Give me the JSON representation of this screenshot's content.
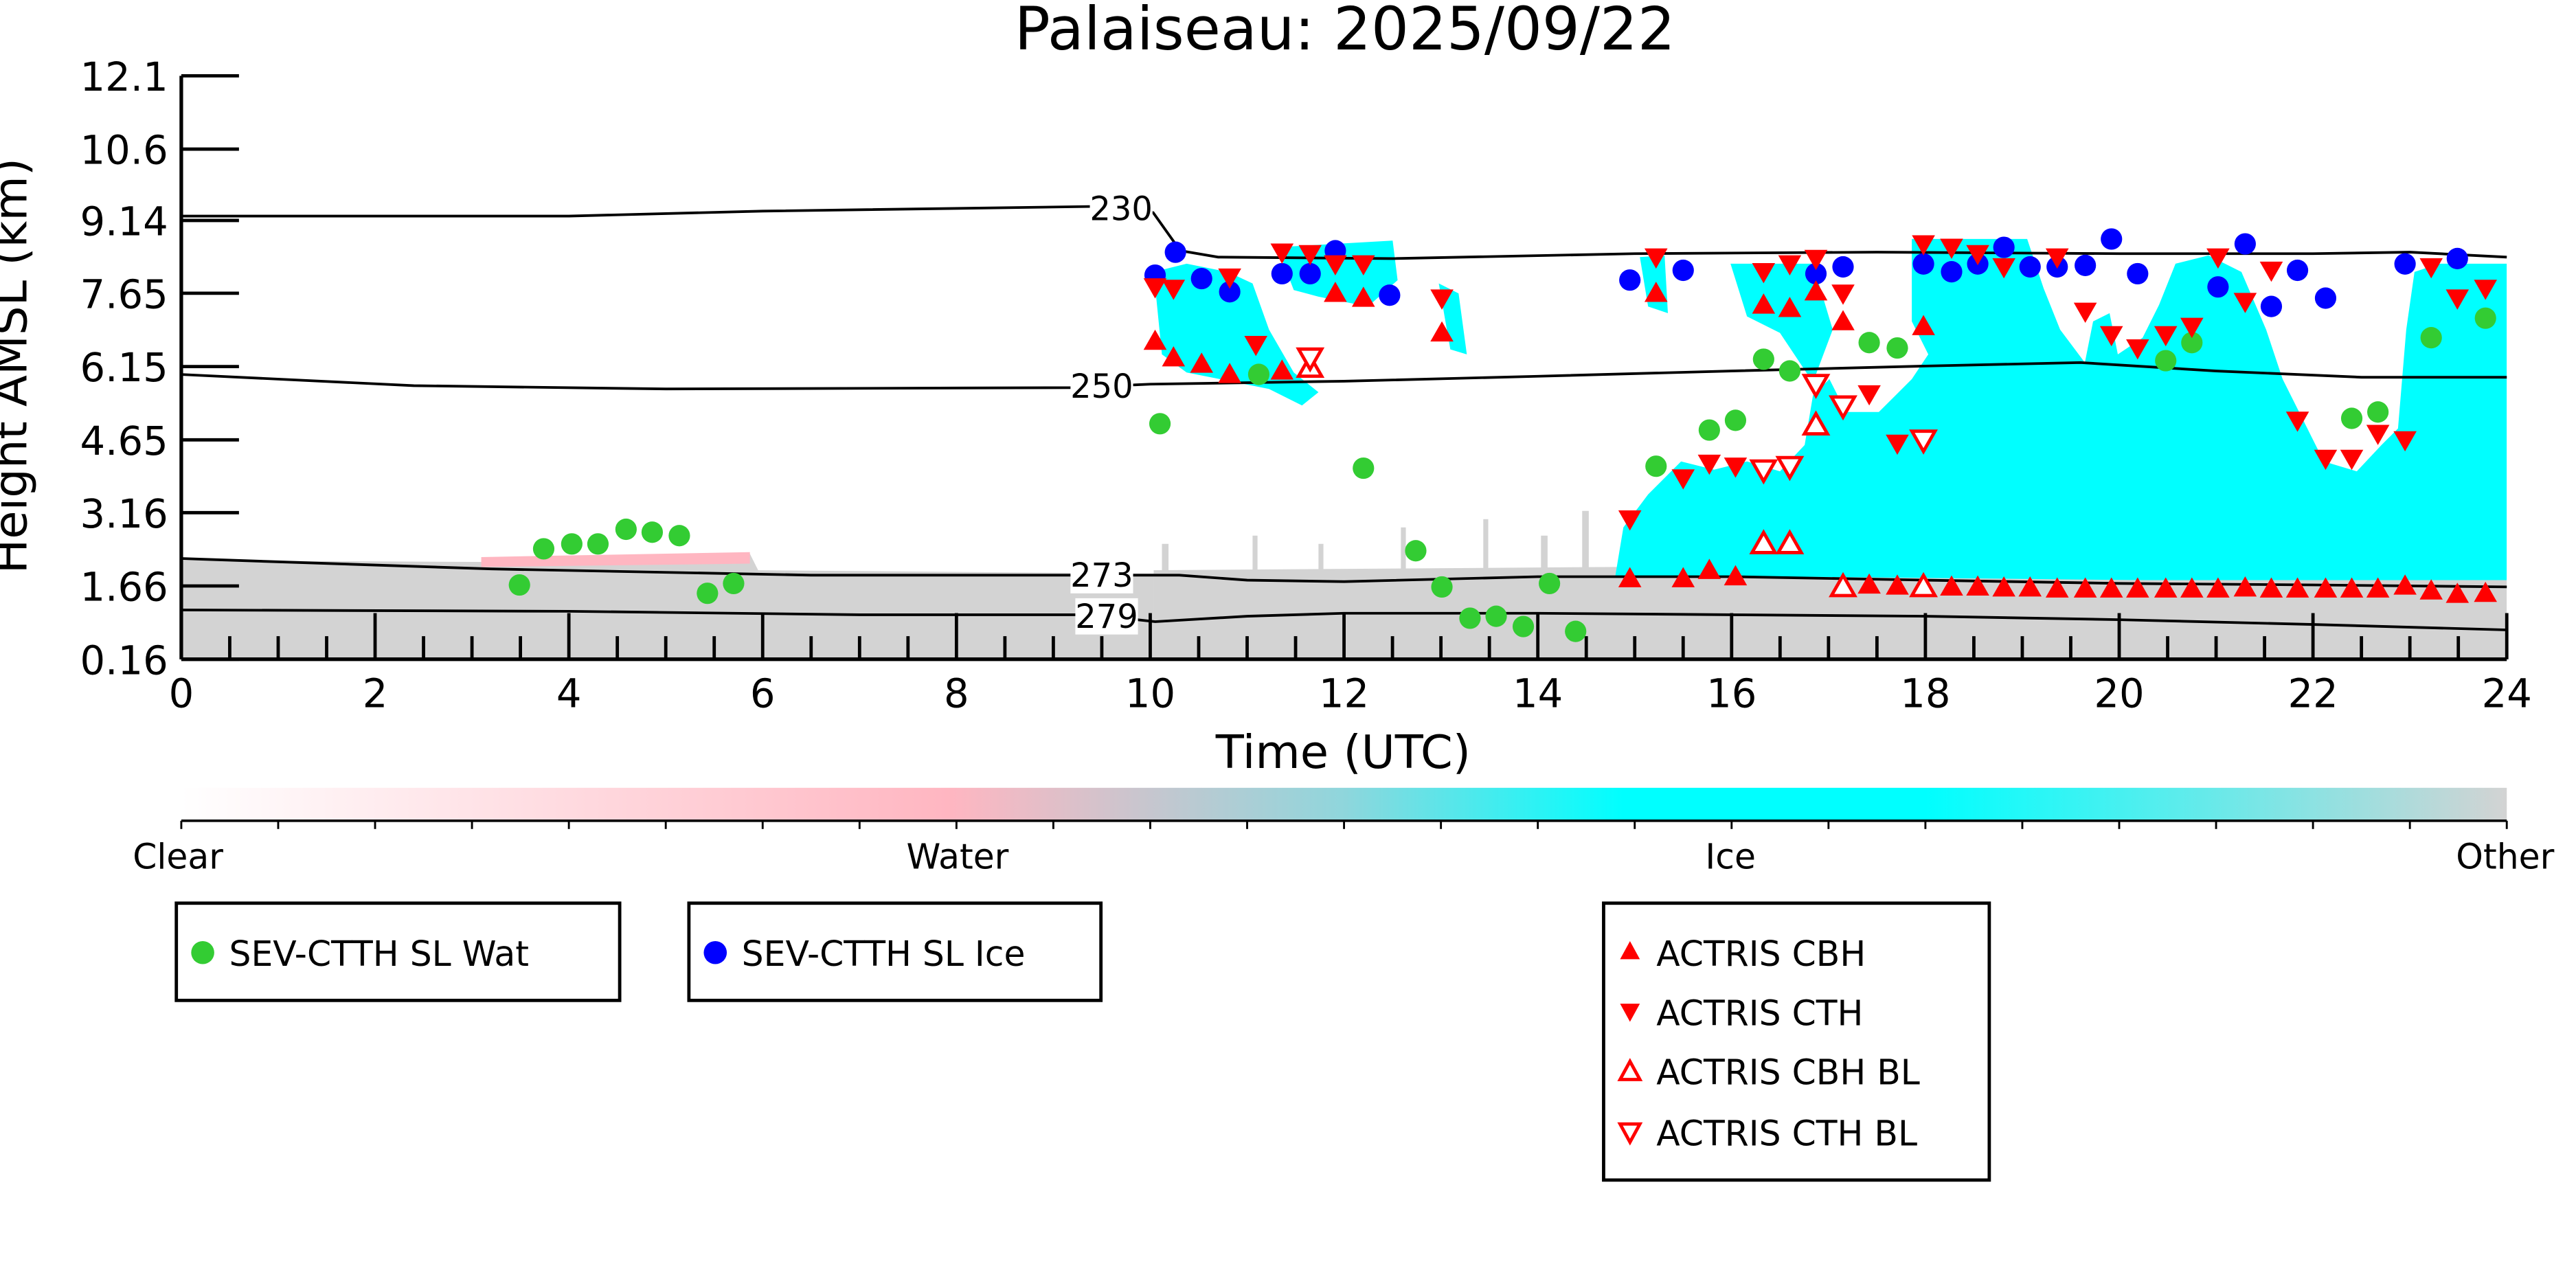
{
  "chart_data": {
    "type": "scatter",
    "title": "Palaiseau: 2025/09/22",
    "xlabel": "Time (UTC)",
    "ylabel": "Height AMSL (km)",
    "xlim": [
      0,
      24
    ],
    "ylim": [
      0.16,
      12.1
    ],
    "xticks": [
      "0",
      "2",
      "4",
      "6",
      "8",
      "10",
      "12",
      "14",
      "16",
      "18",
      "20",
      "22",
      "24"
    ],
    "yticks": [
      "0.16",
      "1.66",
      "3.16",
      "4.65",
      "6.15",
      "7.65",
      "9.14",
      "10.6",
      "12.1"
    ],
    "ytick_values": [
      0.16,
      1.66,
      3.16,
      4.65,
      6.15,
      7.65,
      9.14,
      10.6,
      12.1
    ],
    "colorbar": {
      "labels": [
        "Clear",
        "Water",
        "Ice",
        "Other"
      ],
      "colors": [
        "#ffffff",
        "#ffb6c1",
        "#00ffff",
        "#d3d3d3"
      ]
    },
    "contours": [
      {
        "label": "230",
        "label_t": 9.7,
        "points": [
          [
            0,
            9.23
          ],
          [
            4,
            9.23
          ],
          [
            6,
            9.33
          ],
          [
            9.5,
            9.43
          ],
          [
            10.03,
            9.3
          ],
          [
            10.31,
            8.52
          ],
          [
            10.7,
            8.39
          ],
          [
            12.5,
            8.36
          ],
          [
            15,
            8.46
          ],
          [
            17.5,
            8.49
          ],
          [
            20,
            8.46
          ],
          [
            22,
            8.46
          ],
          [
            23,
            8.49
          ],
          [
            24,
            8.39
          ]
        ]
      },
      {
        "label": "250",
        "label_t": 9.5,
        "points": [
          [
            0,
            5.99
          ],
          [
            2.4,
            5.76
          ],
          [
            5,
            5.69
          ],
          [
            9.2,
            5.72
          ],
          [
            10,
            5.79
          ],
          [
            12,
            5.85
          ],
          [
            14,
            5.95
          ],
          [
            16,
            6.06
          ],
          [
            18,
            6.16
          ],
          [
            19.6,
            6.23
          ],
          [
            21,
            6.06
          ],
          [
            22.5,
            5.93
          ],
          [
            24,
            5.93
          ]
        ]
      },
      {
        "label": "273",
        "label_t": 9.5,
        "points": [
          [
            0,
            2.22
          ],
          [
            3.2,
            2.01
          ],
          [
            6.5,
            1.88
          ],
          [
            9.2,
            1.88
          ],
          [
            10.3,
            1.88
          ],
          [
            11,
            1.78
          ],
          [
            12,
            1.75
          ],
          [
            14,
            1.85
          ],
          [
            16,
            1.85
          ],
          [
            18,
            1.78
          ],
          [
            20,
            1.71
          ],
          [
            22,
            1.68
          ],
          [
            24,
            1.64
          ]
        ]
      },
      {
        "label": "279",
        "label_t": 9.55,
        "points": [
          [
            0,
            1.17
          ],
          [
            4,
            1.14
          ],
          [
            7,
            1.07
          ],
          [
            9.4,
            1.07
          ],
          [
            10.05,
            0.93
          ],
          [
            11,
            1.04
          ],
          [
            12,
            1.1
          ],
          [
            14,
            1.1
          ],
          [
            16,
            1.07
          ],
          [
            18,
            1.04
          ],
          [
            20,
            0.97
          ],
          [
            22,
            0.87
          ],
          [
            24,
            0.76
          ]
        ]
      }
    ],
    "series": [
      {
        "name": "SEV-CTTH SL Wat",
        "marker": "circle",
        "color": "#33cc33",
        "points": [
          [
            3.49,
            1.68
          ],
          [
            3.74,
            2.42
          ],
          [
            4.03,
            2.52
          ],
          [
            4.3,
            2.52
          ],
          [
            4.59,
            2.82
          ],
          [
            4.86,
            2.76
          ],
          [
            5.14,
            2.69
          ],
          [
            5.43,
            1.51
          ],
          [
            5.7,
            1.71
          ],
          [
            10.1,
            4.98
          ],
          [
            11.12,
            5.99
          ],
          [
            12.2,
            4.07
          ],
          [
            12.74,
            2.38
          ],
          [
            13.01,
            1.64
          ],
          [
            13.3,
            1.0
          ],
          [
            13.57,
            1.04
          ],
          [
            13.85,
            0.83
          ],
          [
            14.12,
            1.71
          ],
          [
            14.39,
            0.73
          ],
          [
            15.22,
            4.11
          ],
          [
            15.77,
            4.85
          ],
          [
            16.04,
            5.05
          ],
          [
            16.33,
            6.3
          ],
          [
            16.6,
            6.06
          ],
          [
            17.42,
            6.64
          ],
          [
            17.71,
            6.53
          ],
          [
            20.48,
            6.27
          ],
          [
            20.75,
            6.64
          ],
          [
            22.4,
            5.09
          ],
          [
            22.67,
            5.22
          ],
          [
            23.22,
            6.74
          ],
          [
            23.78,
            7.14
          ]
        ]
      },
      {
        "name": "SEV-CTTH SL Ice",
        "marker": "circle",
        "color": "#0000ff",
        "points": [
          [
            10.05,
            8.02
          ],
          [
            10.26,
            8.49
          ],
          [
            10.53,
            7.95
          ],
          [
            10.82,
            7.68
          ],
          [
            11.36,
            8.05
          ],
          [
            11.65,
            8.05
          ],
          [
            11.91,
            8.52
          ],
          [
            12.47,
            7.61
          ],
          [
            14.95,
            7.92
          ],
          [
            15.5,
            8.12
          ],
          [
            16.87,
            8.05
          ],
          [
            17.15,
            8.19
          ],
          [
            17.98,
            8.25
          ],
          [
            18.27,
            8.09
          ],
          [
            18.54,
            8.25
          ],
          [
            18.81,
            8.59
          ],
          [
            19.08,
            8.19
          ],
          [
            19.36,
            8.19
          ],
          [
            19.65,
            8.22
          ],
          [
            19.92,
            8.76
          ],
          [
            20.19,
            8.05
          ],
          [
            21.02,
            7.78
          ],
          [
            21.3,
            8.66
          ],
          [
            21.57,
            7.38
          ],
          [
            21.84,
            8.12
          ],
          [
            22.13,
            7.55
          ],
          [
            22.95,
            8.25
          ],
          [
            23.49,
            8.36
          ]
        ]
      },
      {
        "name": "ACTRIS CBH",
        "marker": "triangle-up",
        "color": "#ff0000",
        "points": [
          [
            10.05,
            6.67
          ],
          [
            10.24,
            6.33
          ],
          [
            10.53,
            6.2
          ],
          [
            10.82,
            5.99
          ],
          [
            11.36,
            6.06
          ],
          [
            11.91,
            7.65
          ],
          [
            12.2,
            7.55
          ],
          [
            13.01,
            6.84
          ],
          [
            15.22,
            7.65
          ],
          [
            16.33,
            7.41
          ],
          [
            16.6,
            7.34
          ],
          [
            16.87,
            7.68
          ],
          [
            17.15,
            7.07
          ],
          [
            17.98,
            6.97
          ],
          [
            14.95,
            1.81
          ],
          [
            15.5,
            1.81
          ],
          [
            15.77,
            1.98
          ],
          [
            16.04,
            1.85
          ],
          [
            17.42,
            1.68
          ],
          [
            17.71,
            1.66
          ],
          [
            18.27,
            1.64
          ],
          [
            18.54,
            1.64
          ],
          [
            18.81,
            1.62
          ],
          [
            19.08,
            1.62
          ],
          [
            19.36,
            1.6
          ],
          [
            19.65,
            1.6
          ],
          [
            19.92,
            1.6
          ],
          [
            20.19,
            1.6
          ],
          [
            20.48,
            1.6
          ],
          [
            20.75,
            1.6
          ],
          [
            21.02,
            1.6
          ],
          [
            21.3,
            1.62
          ],
          [
            21.57,
            1.6
          ],
          [
            21.84,
            1.6
          ],
          [
            22.13,
            1.6
          ],
          [
            22.4,
            1.6
          ],
          [
            22.67,
            1.6
          ],
          [
            22.95,
            1.66
          ],
          [
            23.22,
            1.56
          ],
          [
            23.49,
            1.49
          ],
          [
            23.78,
            1.51
          ]
        ]
      },
      {
        "name": "ACTRIS CTH",
        "marker": "triangle-down",
        "color": "#ff0000",
        "points": [
          [
            10.05,
            7.78
          ],
          [
            10.24,
            7.75
          ],
          [
            10.82,
            7.98
          ],
          [
            11.09,
            6.6
          ],
          [
            11.36,
            8.49
          ],
          [
            11.65,
            8.46
          ],
          [
            11.91,
            8.25
          ],
          [
            12.2,
            8.25
          ],
          [
            13.01,
            7.55
          ],
          [
            14.95,
            3.03
          ],
          [
            15.22,
            8.39
          ],
          [
            15.5,
            3.87
          ],
          [
            15.77,
            4.17
          ],
          [
            16.04,
            4.11
          ],
          [
            16.33,
            8.09
          ],
          [
            16.6,
            8.25
          ],
          [
            16.87,
            8.36
          ],
          [
            17.15,
            7.65
          ],
          [
            17.42,
            5.59
          ],
          [
            17.71,
            4.58
          ],
          [
            17.98,
            8.66
          ],
          [
            18.27,
            8.59
          ],
          [
            18.54,
            8.46
          ],
          [
            18.81,
            8.19
          ],
          [
            19.36,
            8.39
          ],
          [
            19.65,
            7.28
          ],
          [
            19.92,
            6.8
          ],
          [
            20.19,
            6.53
          ],
          [
            20.48,
            6.8
          ],
          [
            20.75,
            6.97
          ],
          [
            21.02,
            8.39
          ],
          [
            21.3,
            7.48
          ],
          [
            21.57,
            8.12
          ],
          [
            21.84,
            5.05
          ],
          [
            22.13,
            4.27
          ],
          [
            22.4,
            4.27
          ],
          [
            22.67,
            4.78
          ],
          [
            22.95,
            4.65
          ],
          [
            23.22,
            8.19
          ],
          [
            23.49,
            7.55
          ],
          [
            23.78,
            7.75
          ]
        ]
      },
      {
        "name": "ACTRIS CBH BL",
        "marker": "triangle-up-open",
        "color": "#ff0000",
        "points": [
          [
            11.65,
            6.13
          ],
          [
            16.33,
            2.52
          ],
          [
            16.6,
            2.52
          ],
          [
            16.87,
            4.95
          ],
          [
            17.15,
            1.64
          ],
          [
            17.98,
            1.64
          ]
        ]
      },
      {
        "name": "ACTRIS CTH BL",
        "marker": "triangle-down-open",
        "color": "#ff0000",
        "points": [
          [
            11.65,
            6.33
          ],
          [
            16.33,
            4.04
          ],
          [
            16.6,
            4.11
          ],
          [
            16.87,
            5.79
          ],
          [
            17.15,
            5.35
          ],
          [
            17.98,
            4.65
          ]
        ]
      }
    ]
  }
}
